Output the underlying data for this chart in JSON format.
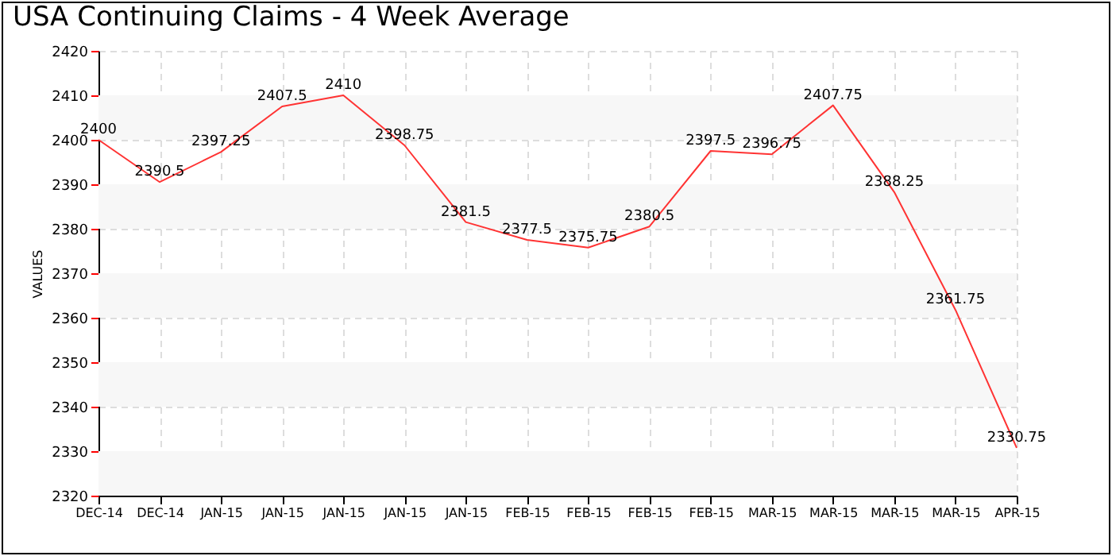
{
  "chart_data": {
    "type": "line",
    "title": "USA Continuing Claims - 4 Week Average",
    "ylabel": "VALUES",
    "categories": [
      "DEC-14",
      "DEC-14",
      "JAN-15",
      "JAN-15",
      "JAN-15",
      "JAN-15",
      "JAN-15",
      "FEB-15",
      "FEB-15",
      "FEB-15",
      "FEB-15",
      "MAR-15",
      "MAR-15",
      "MAR-15",
      "MAR-15",
      "APR-15"
    ],
    "series": [
      {
        "color": "#ff3333",
        "values": [
          2400,
          2390.5,
          2397.25,
          2407.5,
          2410,
          2398.75,
          2381.5,
          2377.5,
          2375.75,
          2380.5,
          2397.5,
          2396.75,
          2407.75,
          2388.25,
          2361.75,
          2330.75
        ]
      }
    ],
    "ylim": [
      2320,
      2420
    ],
    "yticks": [
      2320,
      2330,
      2340,
      2350,
      2360,
      2370,
      2380,
      2390,
      2400,
      2410,
      2420
    ],
    "grid": true,
    "data_labels": true,
    "marker": "none",
    "line_style": "solid"
  }
}
